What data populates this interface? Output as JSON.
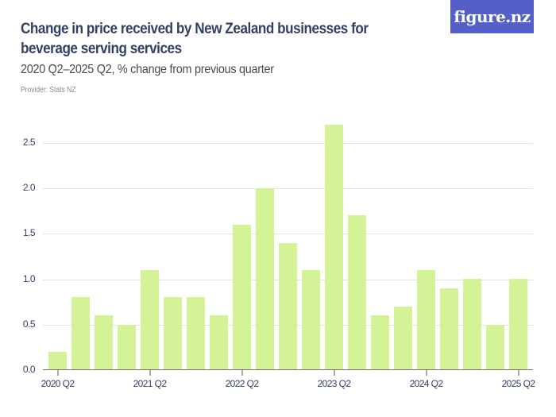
{
  "header": {
    "title": "Change in price received by New Zealand businesses for beverage serving services",
    "subtitle": "2020 Q2–2025 Q2, % change from previous quarter",
    "provider": "Provider: Stats NZ",
    "logo": "figure.nz"
  },
  "colors": {
    "bar": "#d4f396",
    "title": "#344062",
    "logo_bg": "#545fc9"
  },
  "chart_data": {
    "type": "bar",
    "title": "Change in price received by New Zealand businesses for beverage serving services",
    "subtitle": "2020 Q2–2025 Q2, % change from previous quarter",
    "xlabel": "",
    "ylabel": "% change from previous quarter",
    "ylim": [
      0,
      2.8
    ],
    "yticks": [
      "0.0",
      "0.5",
      "1.0",
      "1.5",
      "2.0",
      "2.5"
    ],
    "xtick_labels": [
      "2020 Q2",
      "2021 Q2",
      "2022 Q2",
      "2023 Q2",
      "2024 Q2",
      "2025 Q2"
    ],
    "grid": true,
    "legend": null,
    "categories": [
      "2020 Q2",
      "2020 Q3",
      "2020 Q4",
      "2021 Q1",
      "2021 Q2",
      "2021 Q3",
      "2021 Q4",
      "2022 Q1",
      "2022 Q2",
      "2022 Q3",
      "2022 Q4",
      "2023 Q1",
      "2023 Q2",
      "2023 Q3",
      "2023 Q4",
      "2024 Q1",
      "2024 Q2",
      "2024 Q3",
      "2024 Q4",
      "2025 Q1",
      "2025 Q2"
    ],
    "values": [
      0.2,
      0.8,
      0.6,
      0.5,
      1.1,
      0.8,
      0.8,
      0.6,
      1.6,
      2.0,
      1.4,
      1.1,
      2.7,
      1.7,
      0.6,
      0.7,
      1.1,
      0.9,
      1.0,
      0.5,
      1.0
    ]
  }
}
